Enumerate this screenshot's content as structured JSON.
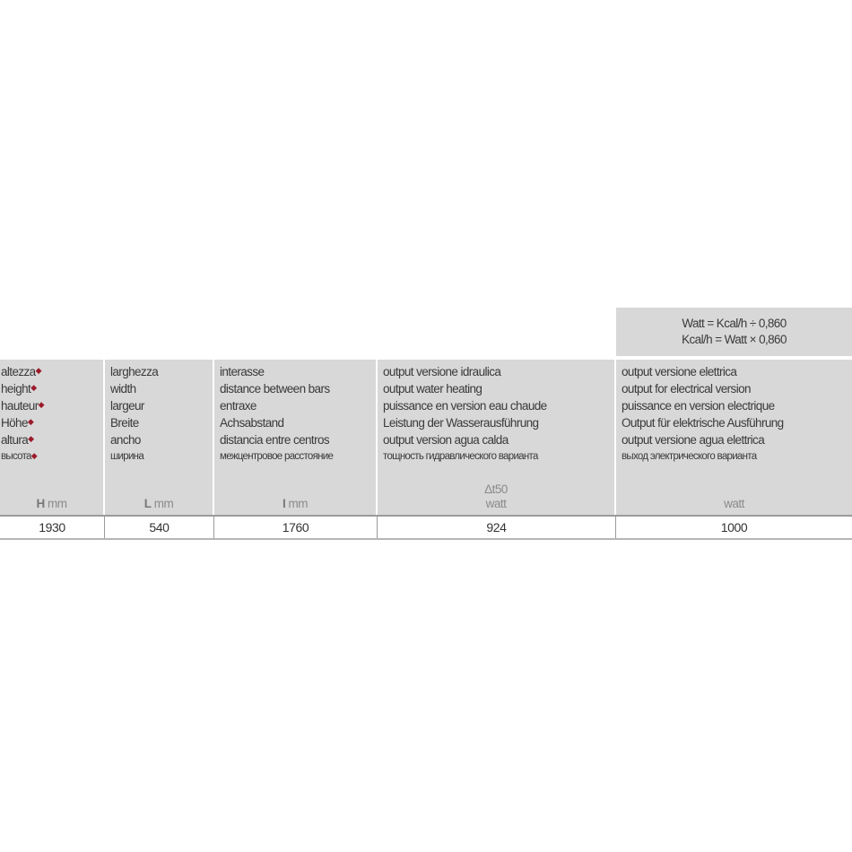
{
  "formula": [
    "Watt = Kcal/h ÷ 0,860",
    "Kcal/h = Watt × 0,860"
  ],
  "columns": [
    {
      "labels": [
        "altezza",
        "height",
        "hauteur",
        "Höhe",
        "altura"
      ],
      "label_ru": "высота",
      "marked": true,
      "unit_symbol": "H",
      "unit": "mm",
      "value": "1930"
    },
    {
      "labels": [
        "larghezza",
        "width",
        "largeur",
        "Breite",
        "ancho"
      ],
      "label_ru": "ширина",
      "marked": false,
      "unit_symbol": "L",
      "unit": "mm",
      "value": "540"
    },
    {
      "labels": [
        "interasse",
        "distance between bars",
        "entraxe",
        "Achsabstand",
        "distancia entre centros"
      ],
      "label_ru": "межцентровое расстояние",
      "marked": false,
      "unit_symbol": "I",
      "unit": "mm",
      "value": "1760"
    },
    {
      "labels": [
        "output versione idraulica",
        "output water heating",
        "puissance en version eau chaude",
        "Leistung der Wasserausführung",
        "output version agua calda"
      ],
      "label_ru": "тощность гидравлического варианта",
      "marked": false,
      "unit_top": "Δt50",
      "unit": "watt",
      "value": "924"
    },
    {
      "labels": [
        "output versione elettrica",
        "output for electrical version",
        "puissance en version electrique",
        "Output für elektrische Ausführung",
        "output versione agua elettrica"
      ],
      "label_ru": "выход электрического варианта",
      "marked": false,
      "unit": "watt",
      "value": "1000"
    }
  ],
  "colors": {
    "header_bg": "#d8d8d8",
    "marker": "#9b1b2a"
  }
}
